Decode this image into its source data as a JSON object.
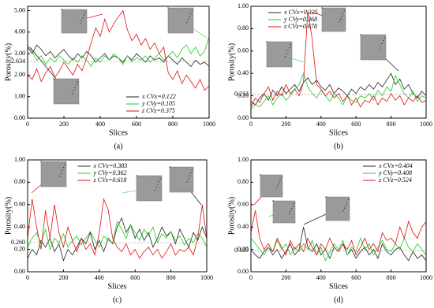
{
  "chart_data": [
    {
      "type": "line",
      "panel_label": "(a)",
      "x_label": "Slices",
      "y_label": "Porosity(%)",
      "legend": "lower right",
      "x": [
        0,
        25,
        50,
        75,
        100,
        125,
        150,
        175,
        200,
        225,
        250,
        275,
        300,
        325,
        350,
        375,
        400,
        425,
        450,
        475,
        500,
        525,
        550,
        575,
        600,
        625,
        650,
        675,
        700,
        725,
        750,
        775,
        800,
        825,
        850,
        875,
        900,
        925,
        950,
        975,
        1000
      ],
      "xlim": [
        0,
        1000
      ],
      "xticks": [
        0,
        200,
        400,
        600,
        800,
        1000
      ],
      "ylim": [
        0,
        5.2
      ],
      "yticks": [
        {
          "value": 0,
          "label": "0.00"
        },
        {
          "value": 1,
          "label": "1.00"
        },
        {
          "value": 2,
          "label": "2.00"
        },
        {
          "value": 3,
          "label": "3.00"
        },
        {
          "value": 4,
          "label": "4.00"
        },
        {
          "value": 5,
          "label": "5.00"
        }
      ],
      "reference": {
        "value": 2.634,
        "color": "#ff00ff"
      },
      "series": [
        {
          "name": "x  CVx=0.122",
          "color": "#222222",
          "values": [
            3.3,
            3.0,
            3.4,
            3.2,
            2.9,
            3.1,
            2.8,
            3.0,
            3.2,
            2.9,
            2.7,
            3.0,
            2.8,
            3.1,
            2.9,
            2.6,
            2.8,
            3.0,
            2.7,
            2.9,
            2.8,
            2.6,
            2.9,
            2.7,
            3.0,
            2.8,
            2.6,
            2.9,
            2.7,
            2.8,
            2.6,
            2.9,
            2.7,
            2.5,
            2.8,
            2.6,
            2.4,
            2.7,
            2.5,
            2.6,
            2.4
          ]
        },
        {
          "name": "y  CVy=0.105",
          "color": "#22cc22",
          "values": [
            3.4,
            3.1,
            2.7,
            2.9,
            2.5,
            2.8,
            2.6,
            2.9,
            2.7,
            2.5,
            2.8,
            2.6,
            2.9,
            2.7,
            2.4,
            2.8,
            2.6,
            2.9,
            2.7,
            3.0,
            2.8,
            2.5,
            2.9,
            2.6,
            2.8,
            2.7,
            2.9,
            2.6,
            2.8,
            3.0,
            2.7,
            2.9,
            3.1,
            2.8,
            3.2,
            3.4,
            3.0,
            3.3,
            2.9,
            3.1,
            3.8
          ]
        },
        {
          "name": "z  CVz=0.375",
          "color": "#e01010",
          "values": [
            2.0,
            1.8,
            2.3,
            1.7,
            2.1,
            2.4,
            1.9,
            2.2,
            2.6,
            2.3,
            2.0,
            2.5,
            2.2,
            2.8,
            3.5,
            4.2,
            3.8,
            4.6,
            4.0,
            4.4,
            4.7,
            5.0,
            4.1,
            3.6,
            3.9,
            3.4,
            3.7,
            3.2,
            3.5,
            3.0,
            3.3,
            2.1,
            1.8,
            2.2,
            1.6,
            2.0,
            1.7,
            1.4,
            1.8,
            1.3,
            1.5
          ]
        }
      ]
    },
    {
      "type": "line",
      "panel_label": "(b)",
      "x_label": "Slices",
      "y_label": "Porosity(%)",
      "legend": "upper left",
      "x": [
        0,
        25,
        50,
        75,
        100,
        125,
        150,
        175,
        200,
        225,
        250,
        275,
        300,
        325,
        350,
        375,
        400,
        425,
        450,
        475,
        500,
        525,
        550,
        575,
        600,
        625,
        650,
        675,
        700,
        725,
        750,
        775,
        800,
        825,
        850,
        875,
        900,
        925,
        950,
        975,
        1000
      ],
      "xlim": [
        0,
        1000
      ],
      "xticks": [
        0,
        200,
        400,
        600,
        800,
        1000
      ],
      "ylim": [
        0,
        1.0
      ],
      "yticks": [
        {
          "value": 0,
          "label": "0.00"
        },
        {
          "value": 0.2,
          "label": "0.20"
        },
        {
          "value": 0.4,
          "label": "0.40"
        },
        {
          "value": 0.6,
          "label": "0.60"
        },
        {
          "value": 0.8,
          "label": "0.80"
        },
        {
          "value": 1,
          "label": "1.00"
        }
      ],
      "reference": {
        "value": 0.212,
        "color": "#ff00ff"
      },
      "series": [
        {
          "name": "x  CVx=0.325",
          "color": "#222222",
          "values": [
            0.15,
            0.12,
            0.18,
            0.22,
            0.16,
            0.25,
            0.2,
            0.28,
            0.22,
            0.26,
            0.3,
            0.24,
            0.32,
            0.36,
            0.3,
            0.34,
            0.28,
            0.25,
            0.3,
            0.22,
            0.27,
            0.24,
            0.2,
            0.26,
            0.22,
            0.28,
            0.25,
            0.3,
            0.26,
            0.32,
            0.28,
            0.34,
            0.4,
            0.3,
            0.35,
            0.26,
            0.3,
            0.22,
            0.18,
            0.24,
            0.2
          ]
        },
        {
          "name": "y  CVy=0.368",
          "color": "#22cc22",
          "values": [
            0.08,
            0.12,
            0.1,
            0.15,
            0.2,
            0.12,
            0.18,
            0.22,
            0.16,
            0.2,
            0.26,
            0.3,
            0.4,
            0.28,
            0.22,
            0.18,
            0.25,
            0.2,
            0.15,
            0.22,
            0.18,
            0.12,
            0.2,
            0.16,
            0.14,
            0.2,
            0.18,
            0.22,
            0.16,
            0.25,
            0.2,
            0.28,
            0.24,
            0.38,
            0.3,
            0.22,
            0.18,
            0.24,
            0.15,
            0.2,
            0.18
          ]
        },
        {
          "name": "z  CVz=0.678",
          "color": "#e01010",
          "values": [
            0.1,
            0.18,
            0.14,
            0.22,
            0.28,
            0.16,
            0.24,
            0.2,
            0.3,
            0.22,
            0.26,
            0.2,
            0.32,
            0.96,
            0.7,
            0.3,
            0.26,
            0.2,
            0.24,
            0.18,
            0.22,
            0.15,
            0.2,
            0.12,
            0.18,
            0.1,
            0.16,
            0.14,
            0.2,
            0.12,
            0.18,
            0.15,
            0.22,
            0.16,
            0.2,
            0.12,
            0.18,
            0.15,
            0.2,
            0.14,
            0.16
          ]
        }
      ]
    },
    {
      "type": "line",
      "panel_label": "(c)",
      "x_label": "Slices",
      "y_label": "Porosity(%)",
      "legend": "upper center",
      "x": [
        0,
        25,
        50,
        75,
        100,
        125,
        150,
        175,
        200,
        225,
        250,
        275,
        300,
        325,
        350,
        375,
        400,
        425,
        450,
        475,
        500,
        525,
        550,
        575,
        600,
        625,
        650,
        675,
        700,
        725,
        750,
        775,
        800,
        825,
        850,
        875,
        900,
        925,
        950,
        975,
        1000
      ],
      "xlim": [
        0,
        1000
      ],
      "xticks": [
        0,
        200,
        400,
        600,
        800,
        1000
      ],
      "ylim": [
        0,
        1.0
      ],
      "yticks": [
        {
          "value": 0,
          "label": "0.00"
        },
        {
          "value": 0.2,
          "label": "0.20"
        },
        {
          "value": 0.4,
          "label": "0.40"
        },
        {
          "value": 0.6,
          "label": "0.60"
        },
        {
          "value": 0.8,
          "label": "0.80"
        },
        {
          "value": 1,
          "label": "1.00"
        }
      ],
      "reference": {
        "value": 0.26,
        "label": "0.260",
        "color": "#ff00ff"
      },
      "series": [
        {
          "name": "x  CVx=0.383",
          "color": "#222222",
          "values": [
            0.12,
            0.2,
            0.15,
            0.28,
            0.22,
            0.3,
            0.18,
            0.25,
            0.1,
            0.2,
            0.15,
            0.22,
            0.3,
            0.25,
            0.35,
            0.2,
            0.28,
            0.18,
            0.3,
            0.25,
            0.4,
            0.48,
            0.35,
            0.42,
            0.3,
            0.38,
            0.28,
            0.35,
            0.22,
            0.3,
            0.4,
            0.32,
            0.36,
            0.25,
            0.38,
            0.3,
            0.22,
            0.35,
            0.28,
            0.4,
            0.3
          ]
        },
        {
          "name": "y  CVy=0.362",
          "color": "#22cc22",
          "values": [
            0.22,
            0.3,
            0.35,
            0.25,
            0.38,
            0.2,
            0.3,
            0.26,
            0.34,
            0.22,
            0.28,
            0.32,
            0.24,
            0.3,
            0.36,
            0.28,
            0.22,
            0.32,
            0.28,
            0.26,
            0.45,
            0.38,
            0.3,
            0.42,
            0.35,
            0.28,
            0.38,
            0.32,
            0.4,
            0.26,
            0.34,
            0.3,
            0.36,
            0.28,
            0.32,
            0.24,
            0.3,
            0.26,
            0.34,
            0.3,
            0.22
          ]
        },
        {
          "name": "z  CVz=0.618",
          "color": "#e01010",
          "values": [
            0.3,
            0.65,
            0.4,
            0.2,
            0.55,
            0.3,
            0.6,
            0.35,
            0.22,
            0.4,
            0.28,
            0.18,
            0.3,
            0.2,
            0.25,
            0.15,
            0.35,
            0.65,
            0.55,
            0.3,
            0.22,
            0.18,
            0.25,
            0.15,
            0.2,
            0.12,
            0.18,
            0.22,
            0.15,
            0.2,
            0.12,
            0.18,
            0.25,
            0.15,
            0.2,
            0.18,
            0.22,
            0.15,
            0.3,
            0.6,
            0.3
          ]
        }
      ]
    },
    {
      "type": "line",
      "panel_label": "(d)",
      "x_label": "Slices",
      "y_label": "Porosity(%)",
      "legend": "upper right",
      "x": [
        0,
        25,
        50,
        75,
        100,
        125,
        150,
        175,
        200,
        225,
        250,
        275,
        300,
        325,
        350,
        375,
        400,
        425,
        450,
        475,
        500,
        525,
        550,
        575,
        600,
        625,
        650,
        675,
        700,
        725,
        750,
        775,
        800,
        825,
        850,
        875,
        900,
        925,
        950,
        975,
        1000
      ],
      "xlim": [
        0,
        1000
      ],
      "xticks": [
        0,
        200,
        400,
        600,
        800,
        1000
      ],
      "ylim": [
        0,
        1.0
      ],
      "yticks": [
        {
          "value": 0,
          "label": "0.00"
        },
        {
          "value": 0.2,
          "label": "0.20"
        },
        {
          "value": 0.4,
          "label": "0.40"
        },
        {
          "value": 0.6,
          "label": "0.60"
        },
        {
          "value": 0.8,
          "label": "0.80"
        },
        {
          "value": 1,
          "label": "1.00"
        }
      ],
      "reference": {
        "value": 0.189,
        "color": "#ff00ff"
      },
      "series": [
        {
          "name": "x  CVx=0.404",
          "color": "#222222",
          "values": [
            0.2,
            0.15,
            0.12,
            0.18,
            0.22,
            0.15,
            0.2,
            0.12,
            0.18,
            0.25,
            0.15,
            0.2,
            0.4,
            0.22,
            0.18,
            0.25,
            0.15,
            0.2,
            0.12,
            0.22,
            0.18,
            0.25,
            0.15,
            0.2,
            0.12,
            0.18,
            0.22,
            0.15,
            0.2,
            0.12,
            0.25,
            0.18,
            0.15,
            0.2,
            0.22,
            0.15,
            0.1,
            0.18,
            0.12,
            0.15,
            0.1
          ]
        },
        {
          "name": "y  CVy=0.408",
          "color": "#22cc22",
          "values": [
            0.3,
            0.25,
            0.2,
            0.15,
            0.22,
            0.18,
            0.28,
            0.2,
            0.25,
            0.15,
            0.22,
            0.18,
            0.25,
            0.2,
            0.28,
            0.15,
            0.22,
            0.1,
            0.18,
            0.25,
            0.2,
            0.28,
            0.15,
            0.22,
            0.18,
            0.3,
            0.2,
            0.25,
            0.15,
            0.22,
            0.28,
            0.2,
            0.18,
            0.25,
            0.2,
            0.3,
            0.22,
            0.18,
            0.25,
            0.2,
            0.15
          ]
        },
        {
          "name": "z  CVz=0.524",
          "color": "#e01010",
          "values": [
            0.35,
            0.55,
            0.3,
            0.2,
            0.25,
            0.18,
            0.3,
            0.22,
            0.15,
            0.28,
            0.2,
            0.25,
            0.18,
            0.3,
            0.22,
            0.15,
            0.25,
            0.2,
            0.3,
            0.22,
            0.18,
            0.25,
            0.2,
            0.28,
            0.15,
            0.22,
            0.3,
            0.2,
            0.25,
            0.18,
            0.35,
            0.28,
            0.3,
            0.25,
            0.4,
            0.3,
            0.45,
            0.35,
            0.3,
            0.4,
            0.45
          ]
        }
      ]
    }
  ]
}
